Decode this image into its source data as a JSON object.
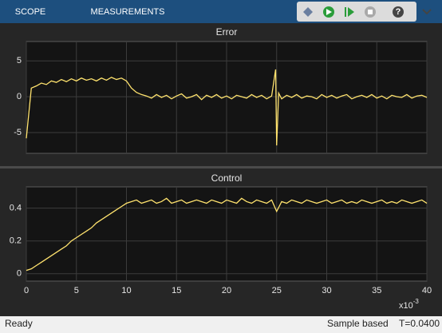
{
  "toolbar": {
    "tabs": [
      "SCOPE",
      "MEASUREMENTS"
    ],
    "help": "?"
  },
  "chart_data": [
    {
      "type": "line",
      "title": "Error",
      "xlim": [
        0,
        40
      ],
      "xticks": [
        0,
        5,
        10,
        15,
        20,
        25,
        30,
        35,
        40
      ],
      "show_xtick_labels": false,
      "ylim": [
        -7.9,
        7.7
      ],
      "yticks": [
        -5,
        0,
        5
      ],
      "grid": true,
      "x": [
        0,
        0.5,
        1,
        1.5,
        2,
        2.5,
        3,
        3.5,
        4,
        4.5,
        5,
        5.5,
        6,
        6.5,
        7,
        7.5,
        8,
        8.5,
        9,
        9.5,
        10,
        10.5,
        11,
        11.5,
        12,
        12.5,
        13,
        13.5,
        14,
        14.5,
        15,
        15.5,
        16,
        16.5,
        17,
        17.5,
        18,
        18.5,
        19,
        19.5,
        20,
        20.5,
        21,
        21.5,
        22,
        22.5,
        23,
        23.5,
        24,
        24.5,
        24.9,
        25,
        25.2,
        25.5,
        26,
        26.5,
        27,
        27.5,
        28,
        28.5,
        29,
        29.5,
        30,
        30.5,
        31,
        31.5,
        32,
        32.5,
        33,
        33.5,
        34,
        34.5,
        35,
        35.5,
        36,
        36.5,
        37,
        37.5,
        38,
        38.5,
        39,
        39.5,
        40
      ],
      "series": [
        {
          "name": "Error",
          "color": "#ffe36e",
          "values": [
            -5.8,
            1.2,
            1.5,
            1.9,
            1.7,
            2.2,
            2.0,
            2.4,
            2.1,
            2.5,
            2.2,
            2.6,
            2.3,
            2.5,
            2.2,
            2.6,
            2.3,
            2.7,
            2.4,
            2.6,
            2.2,
            1.2,
            0.6,
            0.3,
            0.1,
            -0.2,
            0.3,
            -0.1,
            0.2,
            -0.3,
            0.1,
            0.4,
            -0.2,
            0.0,
            0.3,
            -0.4,
            0.2,
            -0.1,
            0.3,
            -0.2,
            0.1,
            -0.3,
            0.2,
            0.0,
            -0.2,
            0.3,
            -0.1,
            0.2,
            -0.3,
            0.1,
            3.8,
            -6.8,
            0.5,
            -0.3,
            0.2,
            -0.1,
            0.3,
            -0.2,
            0.1,
            0.0,
            -0.3,
            0.3,
            -0.1,
            0.2,
            -0.2,
            0.1,
            0.3,
            -0.3,
            0.0,
            0.2,
            -0.1,
            0.3,
            -0.2,
            0.1,
            -0.3,
            0.2,
            0.0,
            -0.1,
            0.3,
            -0.2,
            0.1,
            0.2,
            -0.1
          ]
        }
      ]
    },
    {
      "type": "line",
      "title": "Control",
      "xlim": [
        0,
        40
      ],
      "xticks": [
        0,
        5,
        10,
        15,
        20,
        25,
        30,
        35,
        40
      ],
      "show_xtick_labels": true,
      "x_scale_label": "x10",
      "x_scale_exponent": "-3",
      "ylim": [
        -0.045,
        0.53
      ],
      "yticks": [
        0,
        0.2,
        0.4
      ],
      "grid": true,
      "x": [
        0,
        0.5,
        1,
        1.5,
        2,
        2.5,
        3,
        3.5,
        4,
        4.5,
        5,
        5.5,
        6,
        6.5,
        7,
        7.5,
        8,
        8.5,
        9,
        9.5,
        10,
        10.5,
        11,
        11.5,
        12,
        12.5,
        13,
        13.5,
        14,
        14.5,
        15,
        15.5,
        16,
        16.5,
        17,
        17.5,
        18,
        18.5,
        19,
        19.5,
        20,
        20.5,
        21,
        21.5,
        22,
        22.5,
        23,
        23.5,
        24,
        24.5,
        25,
        25.5,
        26,
        26.5,
        27,
        27.5,
        28,
        28.5,
        29,
        29.5,
        30,
        30.5,
        31,
        31.5,
        32,
        32.5,
        33,
        33.5,
        34,
        34.5,
        35,
        35.5,
        36,
        36.5,
        37,
        37.5,
        38,
        38.5,
        39,
        39.5,
        40
      ],
      "series": [
        {
          "name": "Control",
          "color": "#ffe36e",
          "values": [
            0.02,
            0.03,
            0.05,
            0.07,
            0.09,
            0.11,
            0.13,
            0.15,
            0.17,
            0.2,
            0.22,
            0.24,
            0.26,
            0.28,
            0.31,
            0.33,
            0.35,
            0.37,
            0.39,
            0.41,
            0.43,
            0.44,
            0.45,
            0.43,
            0.44,
            0.45,
            0.43,
            0.44,
            0.46,
            0.43,
            0.44,
            0.45,
            0.43,
            0.44,
            0.45,
            0.44,
            0.43,
            0.45,
            0.44,
            0.43,
            0.45,
            0.44,
            0.43,
            0.46,
            0.44,
            0.43,
            0.45,
            0.44,
            0.43,
            0.45,
            0.38,
            0.44,
            0.43,
            0.45,
            0.44,
            0.43,
            0.45,
            0.44,
            0.43,
            0.44,
            0.45,
            0.43,
            0.44,
            0.45,
            0.43,
            0.44,
            0.43,
            0.45,
            0.44,
            0.43,
            0.44,
            0.45,
            0.43,
            0.44,
            0.43,
            0.45,
            0.44,
            0.43,
            0.44,
            0.45,
            0.43
          ]
        }
      ]
    }
  ],
  "status_bar": {
    "left": "Ready",
    "sample_mode": "Sample based",
    "time": "T=0.0400"
  }
}
